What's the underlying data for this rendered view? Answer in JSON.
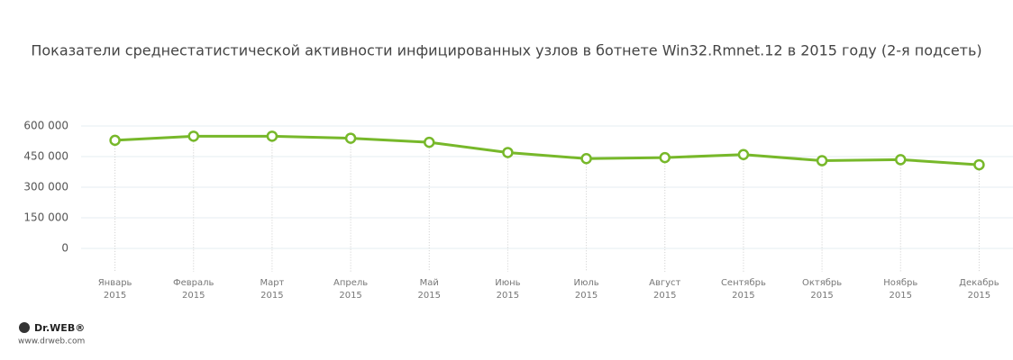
{
  "chart_data": {
    "type": "line",
    "title": "Показатели среднестатистической активности инфицированных узлов в ботнете Win32.Rmnet.12 в 2015 году (2-я подсеть)",
    "categories": [
      "Январь 2015",
      "Февраль 2015",
      "Март 2015",
      "Апрель 2015",
      "Май 2015",
      "Июнь 2015",
      "Июль 2015",
      "Август 2015",
      "Сентябрь 2015",
      "Октябрь 2015",
      "Ноябрь 2015",
      "Декабрь 2015"
    ],
    "series": [
      {
        "name": "Win32.Rmnet.12",
        "color": "#77b82a",
        "values": [
          530000,
          550000,
          550000,
          540000,
          520000,
          470000,
          440000,
          445000,
          460000,
          430000,
          435000,
          410000
        ]
      }
    ],
    "ylim": [
      -75000,
      600000
    ],
    "yticks": [
      {
        "value": 0,
        "label": "0"
      },
      {
        "value": 150000,
        "label": "150 000"
      },
      {
        "value": 300000,
        "label": "300 000"
      },
      {
        "value": 450000,
        "label": "450 000"
      },
      {
        "value": 600000,
        "label": "600 000"
      }
    ],
    "grid": true
  },
  "logo": {
    "brand": "Dr.WEB®",
    "url": "www.drweb.com"
  }
}
